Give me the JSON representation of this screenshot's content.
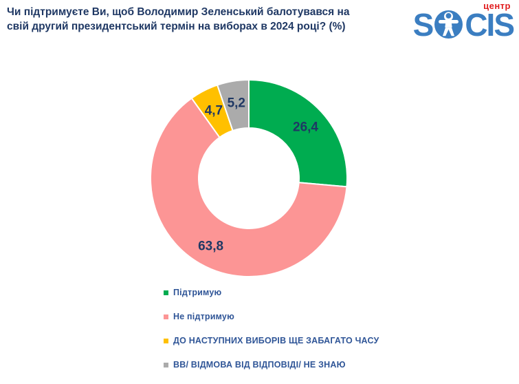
{
  "header": {
    "question_line1": "Чи підтримуєте Ви, щоб Володимир Зеленський балотувався на",
    "question_line2": "свій другий президентський термін на виборах в 2024 році? (%)",
    "title_color": "#1F3864",
    "logo": {
      "top_label": "центр",
      "word_start": "S",
      "word_end": "CIS",
      "person_icon": "vitruvian-person-icon",
      "brand_color": "#3B7EC1",
      "top_label_color": "#E11D1F"
    }
  },
  "chart_data": {
    "type": "pie",
    "style": "donut",
    "title": "Чи підтримуєте Ви, щоб Володимир Зеленський балотувався на свій другий президентський термін на виборах в 2024 році? (%)",
    "categories": [
      "Підтримую",
      "Не підтримую",
      "ДО НАСТУПНИХ ВИБОРІВ ЩЕ ЗАБАГАТО ЧАСУ",
      "ВВ/ ВІДМОВА ВІД ВІДПОВІДІ/ НЕ ЗНАЮ"
    ],
    "values": [
      26.4,
      63.8,
      4.7,
      5.2
    ],
    "display_values": [
      "26,4",
      "63,8",
      "4,7",
      "5,2"
    ],
    "colors": [
      "#00AC50",
      "#FC9595",
      "#FFC000",
      "#ABABAB"
    ],
    "start_angle_deg": 0,
    "direction": "clockwise",
    "inner_radius_ratio": 0.5,
    "slice_separator_color": "#FFFFFF",
    "data_label_color": "#1F3864",
    "legend_position": "bottom",
    "legend_text_color": "#2F5597"
  }
}
